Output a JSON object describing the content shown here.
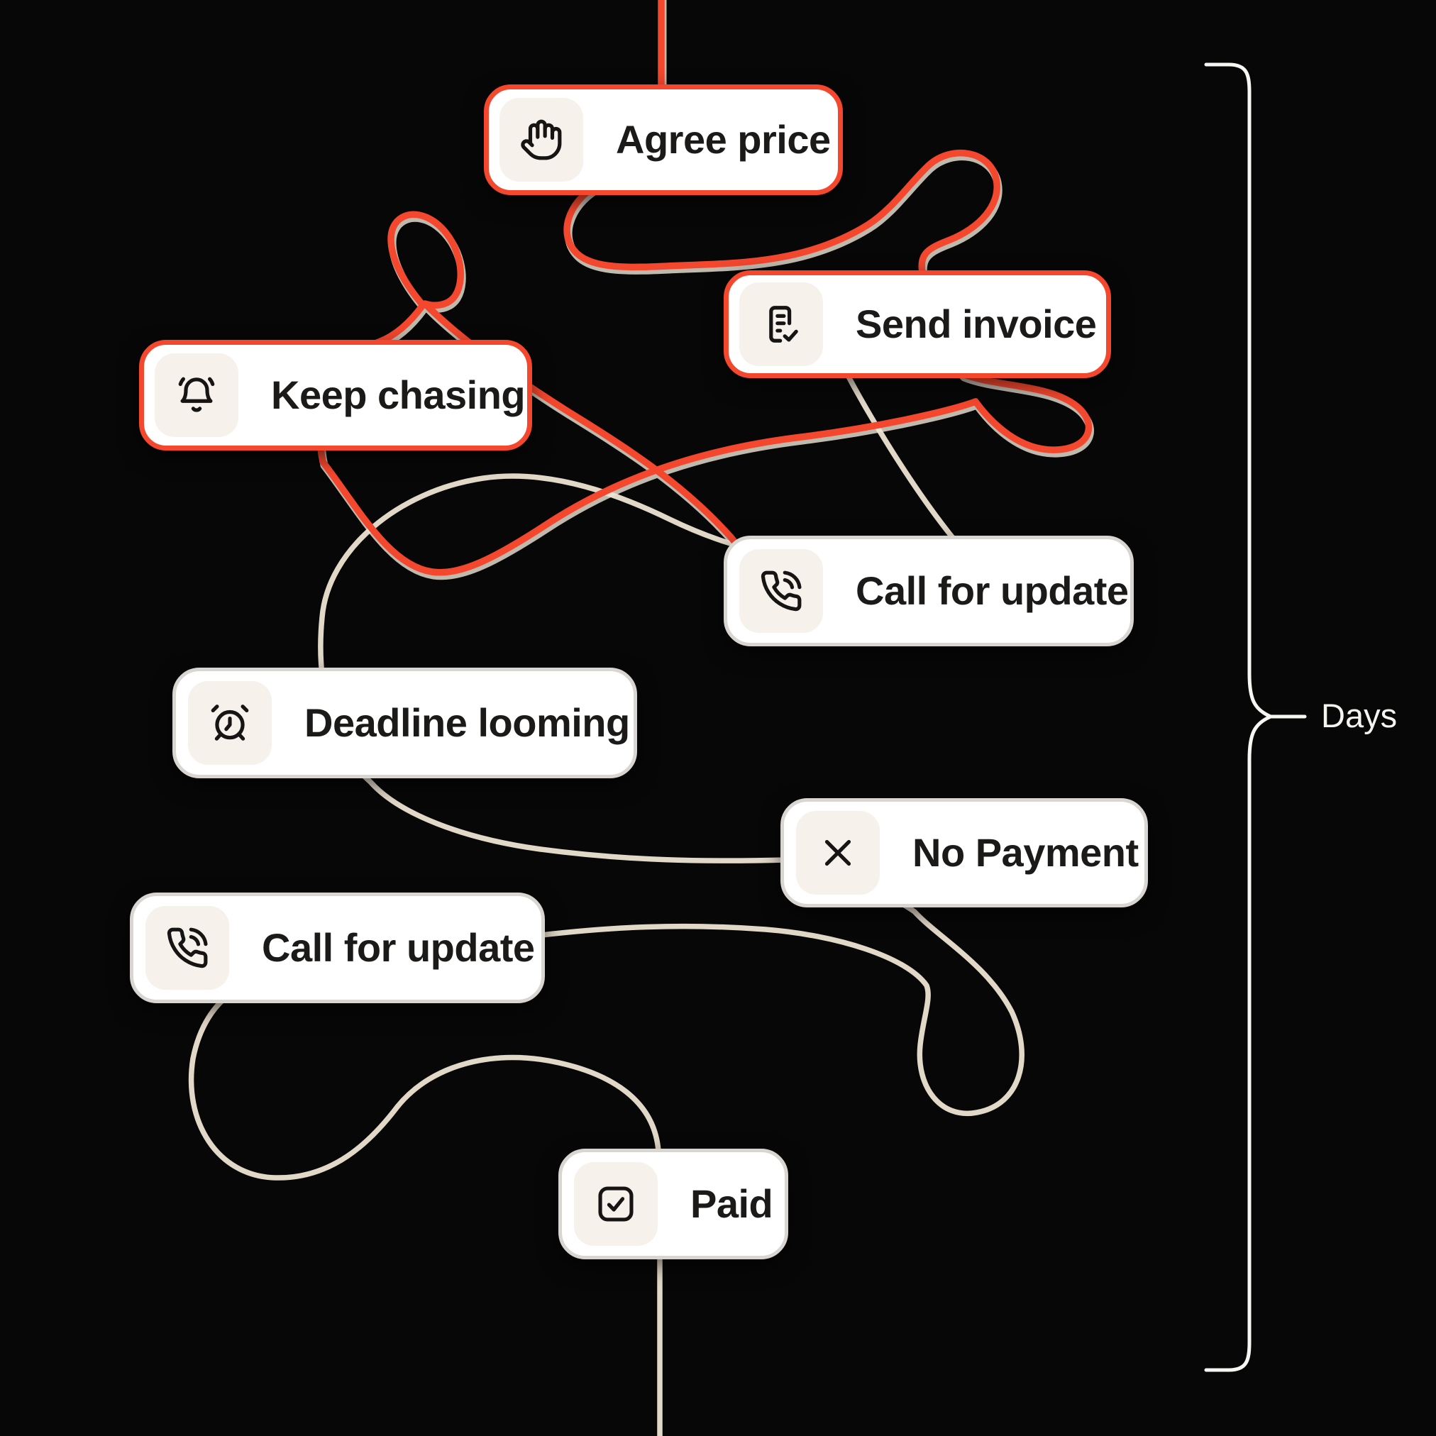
{
  "scene": {
    "background": "#070707",
    "bracket_label": "Days"
  },
  "thread": {
    "red_color": "#F3472E",
    "red_under_glow": "#EFE6D8",
    "cream_color": "#E2D8C8",
    "bracket_color": "#F8F6F2"
  },
  "cards": [
    {
      "label": "Agree price",
      "icon": "hand-icon",
      "accent": "red"
    },
    {
      "label": "Send invoice",
      "icon": "invoice-check-icon",
      "accent": "red"
    },
    {
      "label": "Keep chasing",
      "icon": "bell-icon",
      "accent": "red"
    },
    {
      "label": "Call for update",
      "icon": "phone-call-icon",
      "accent": "neutral"
    },
    {
      "label": "Deadline looming",
      "icon": "alarm-clock-icon",
      "accent": "neutral"
    },
    {
      "label": "No Payment",
      "icon": "x-icon",
      "accent": "neutral"
    },
    {
      "label": "Call for update",
      "icon": "phone-call-icon",
      "accent": "neutral"
    },
    {
      "label": "Paid",
      "icon": "checkbox-check-icon",
      "accent": "neutral"
    }
  ],
  "colors": {
    "card_bg": "#FFFFFF",
    "card_border_neutral": "#D9D5D1",
    "card_border_red": "#F3472E",
    "icon_tile_bg": "#F6F1EB",
    "label_color": "#1B1A19",
    "days_text_color": "#F6F4F1"
  }
}
